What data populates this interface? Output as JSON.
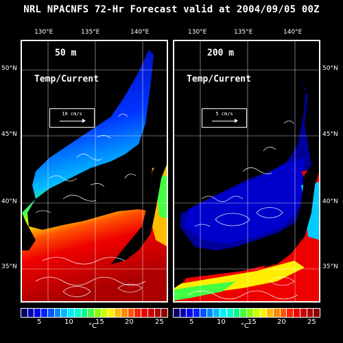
{
  "title": "NRL NPACNFS 72-Hr Forecast valid at 2004/09/05 00Z",
  "panels": [
    {
      "depth": "50 m",
      "field": "Temp/Current",
      "ref_arrow": "10 cm/s"
    },
    {
      "depth": "200 m",
      "field": "Temp/Current",
      "ref_arrow": "5 cm/s"
    }
  ],
  "lon_labels": [
    "130°E",
    "135°E",
    "140°E"
  ],
  "lat_labels": [
    "50°N",
    "45°N",
    "40°N",
    "35°N"
  ],
  "colorbar": {
    "ticks": [
      "5",
      "10",
      "15",
      "20",
      "25"
    ],
    "unit": "°C",
    "colors": [
      "#000066",
      "#0000aa",
      "#0000ee",
      "#0022ff",
      "#0055ff",
      "#0088ff",
      "#00bbff",
      "#00eeff",
      "#00ffcc",
      "#00ff88",
      "#44ff44",
      "#88ff00",
      "#ccff00",
      "#ffee00",
      "#ffbb00",
      "#ff8800",
      "#ff5500",
      "#ff2200",
      "#ee0000",
      "#cc0000",
      "#aa0000",
      "#880000"
    ]
  }
}
